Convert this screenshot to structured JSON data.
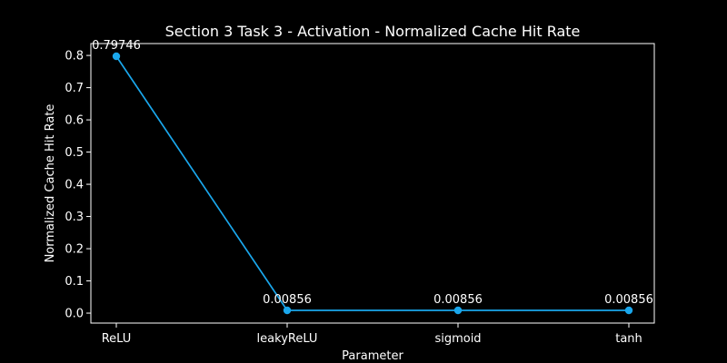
{
  "chart_data": {
    "type": "line",
    "title": "Section 3 Task 3 - Activation - Normalized Cache Hit Rate",
    "xlabel": "Parameter",
    "ylabel": "Normalized Cache Hit Rate",
    "categories": [
      "ReLU",
      "leakyReLU",
      "sigmoid",
      "tanh"
    ],
    "series": [
      {
        "values": [
          0.79746,
          0.00856,
          0.00856,
          0.00856
        ]
      }
    ],
    "data_labels": [
      "0.79746",
      "0.00856",
      "0.00856",
      "0.00856"
    ],
    "yticks": [
      0.0,
      0.1,
      0.2,
      0.3,
      0.4,
      0.5,
      0.6,
      0.7,
      0.8
    ],
    "ytick_labels": [
      "0.0",
      "0.1",
      "0.2",
      "0.3",
      "0.4",
      "0.5",
      "0.6",
      "0.7",
      "0.8"
    ],
    "ylim": [
      -0.03089,
      0.83691
    ],
    "grid": false,
    "legend": "none",
    "colors": {
      "background": "#000000",
      "line": "#1aa7ec",
      "text": "#ffffff",
      "axes": "#ffffff"
    }
  }
}
